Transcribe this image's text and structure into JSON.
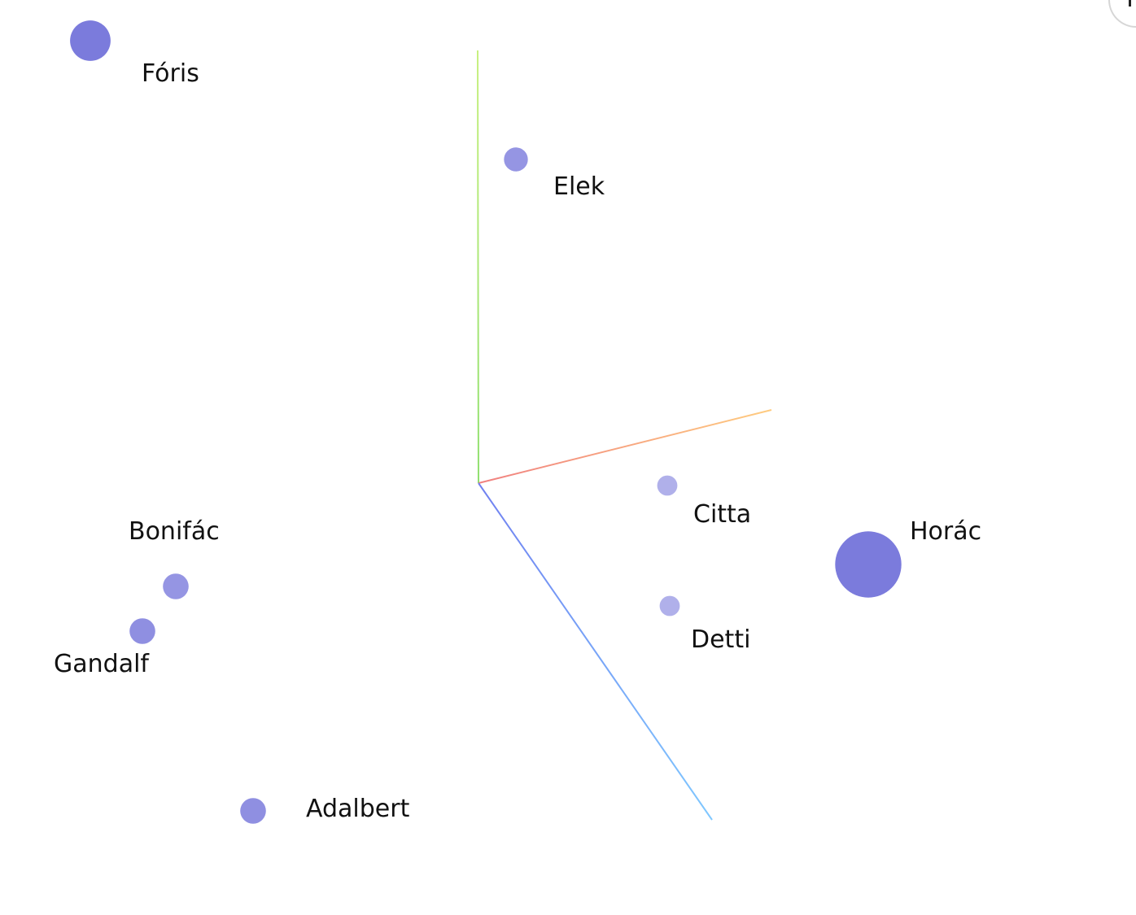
{
  "chart_data": {
    "type": "scatter",
    "title": "",
    "axes": {
      "x": {
        "label": "",
        "colors": [
          "#f08080",
          "#ffcc80"
        ]
      },
      "y": {
        "label": "",
        "colors": [
          "#90e070",
          "#c8f080"
        ]
      },
      "z": {
        "label": "",
        "colors": [
          "#7080f0",
          "#80c8ff"
        ]
      }
    },
    "grid": false,
    "legend": "none",
    "point_color": "#7b7bdc",
    "points": [
      {
        "name": "Fóris",
        "size": 2.2,
        "depth": 1.0
      },
      {
        "name": "Elek",
        "size": 1.3,
        "depth": 0.8
      },
      {
        "name": "Citta",
        "size": 1.1,
        "depth": 0.6
      },
      {
        "name": "Horác",
        "size": 3.6,
        "depth": 1.0
      },
      {
        "name": "Detti",
        "size": 1.1,
        "depth": 0.6
      },
      {
        "name": "Bonifác",
        "size": 1.4,
        "depth": 0.8
      },
      {
        "name": "Gandalf",
        "size": 1.4,
        "depth": 0.85
      },
      {
        "name": "Adalbert",
        "size": 1.4,
        "depth": 0.85
      }
    ]
  }
}
